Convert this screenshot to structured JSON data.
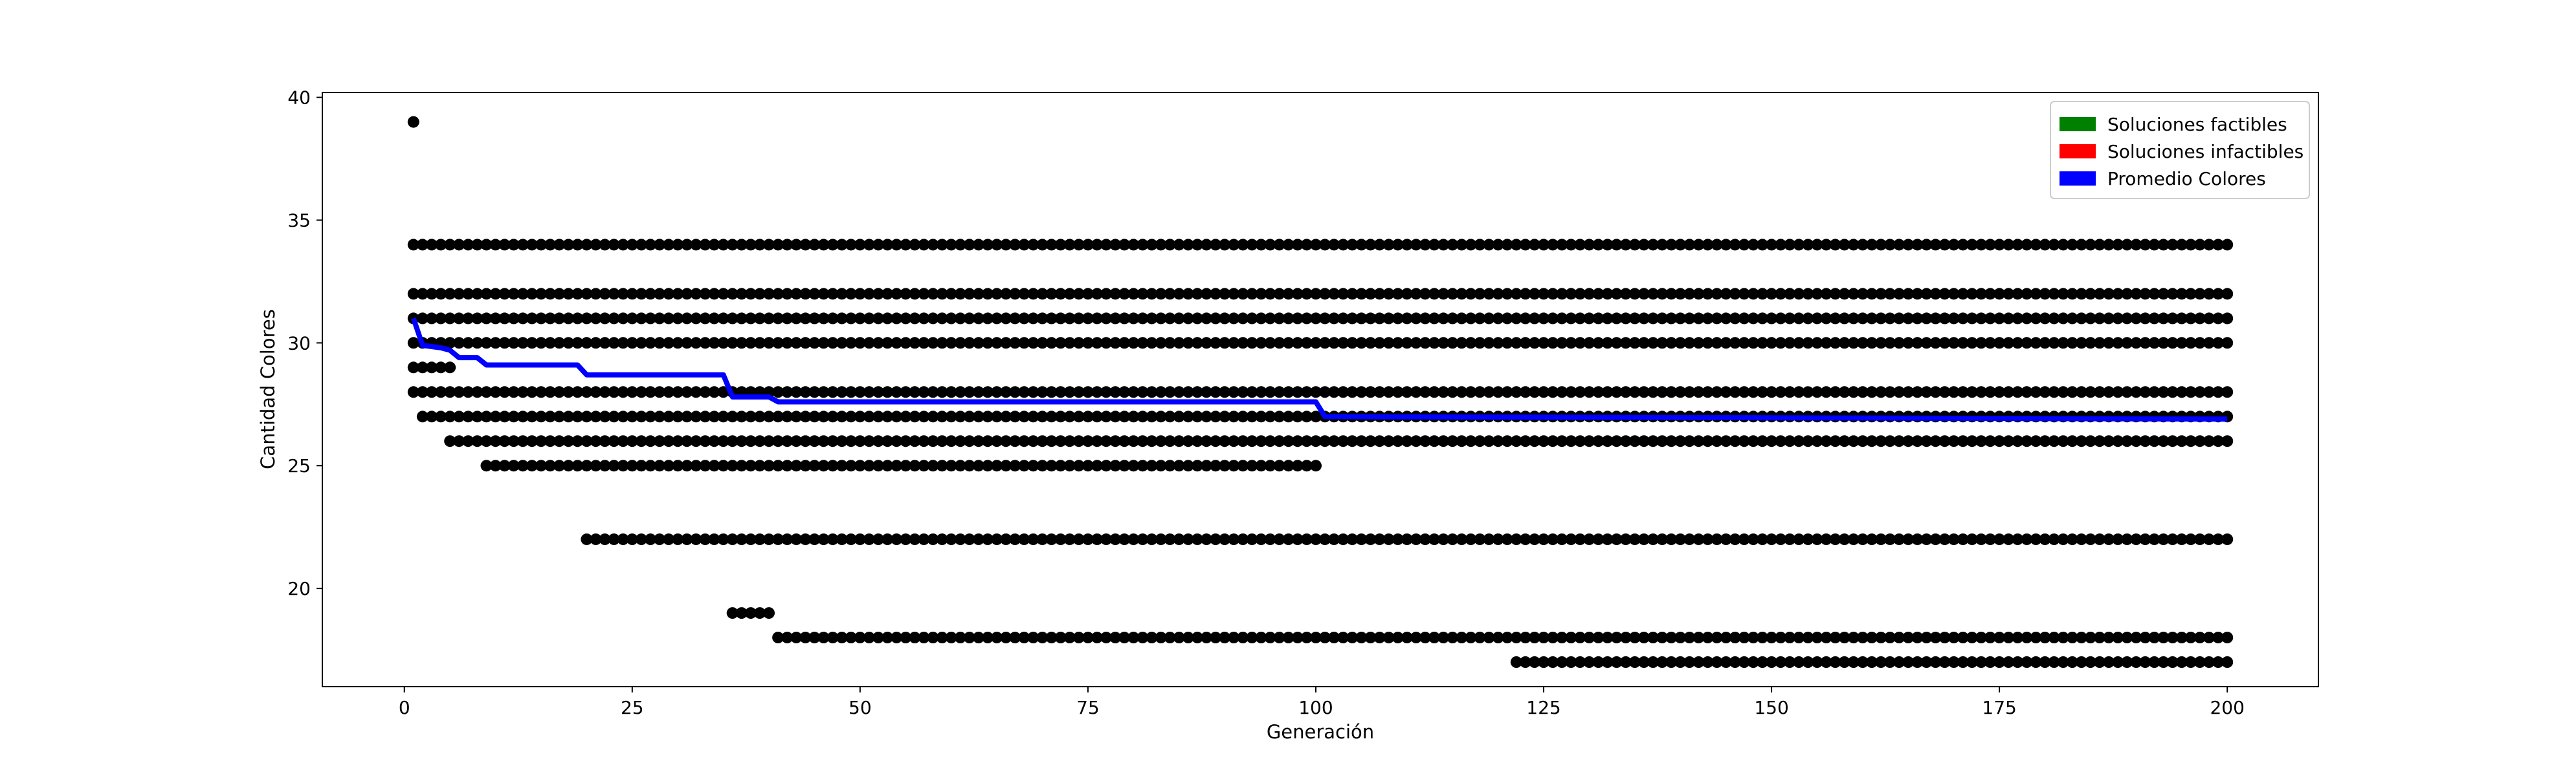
{
  "chart_data": {
    "type": "scatter",
    "title": "",
    "xlabel": "Generación",
    "ylabel": "Cantidad Colores",
    "xlim": [
      -9,
      210
    ],
    "ylim": [
      16.0,
      40.2
    ],
    "xticks": [
      0,
      25,
      50,
      75,
      100,
      125,
      150,
      175,
      200
    ],
    "yticks": [
      20,
      25,
      30,
      35,
      40
    ],
    "grid": false,
    "legend": {
      "placement": "top-right",
      "entries": [
        {
          "label": "Soluciones factibles",
          "color": "#008000"
        },
        {
          "label": "Soluciones infactibles",
          "color": "#ff0000"
        },
        {
          "label": "Promedio Colores",
          "color": "#0000ff"
        }
      ]
    },
    "scatter_series": {
      "color": "#000000",
      "point_rows": [
        {
          "y": 39,
          "x_from": 1,
          "x_to": 1
        },
        {
          "y": 34,
          "x_from": 1,
          "x_to": 200
        },
        {
          "y": 32,
          "x_from": 1,
          "x_to": 200
        },
        {
          "y": 31,
          "x_from": 1,
          "x_to": 200
        },
        {
          "y": 30,
          "x_from": 1,
          "x_to": 200
        },
        {
          "y": 29,
          "x_from": 1,
          "x_to": 5
        },
        {
          "y": 28,
          "x_from": 1,
          "x_to": 200
        },
        {
          "y": 27,
          "x_from": 2,
          "x_to": 200
        },
        {
          "y": 26,
          "x_from": 5,
          "x_to": 200
        },
        {
          "y": 25,
          "x_from": 9,
          "x_to": 100
        },
        {
          "y": 22,
          "x_from": 20,
          "x_to": 200
        },
        {
          "y": 19,
          "x_from": 36,
          "x_to": 40
        },
        {
          "y": 18,
          "x_from": 41,
          "x_to": 200
        },
        {
          "y": 17,
          "x_from": 122,
          "x_to": 200
        }
      ]
    },
    "line_series": {
      "name": "Promedio Colores",
      "color": "#0000ff",
      "points": [
        [
          1,
          31.0
        ],
        [
          2,
          29.9
        ],
        [
          4,
          29.8
        ],
        [
          5,
          29.7
        ],
        [
          6,
          29.4
        ],
        [
          8,
          29.4
        ],
        [
          9,
          29.1
        ],
        [
          19,
          29.1
        ],
        [
          20,
          28.7
        ],
        [
          35,
          28.7
        ],
        [
          36,
          27.8
        ],
        [
          40,
          27.8
        ],
        [
          41,
          27.6
        ],
        [
          100,
          27.6
        ],
        [
          101,
          27.0
        ],
        [
          200,
          26.9
        ]
      ]
    }
  }
}
